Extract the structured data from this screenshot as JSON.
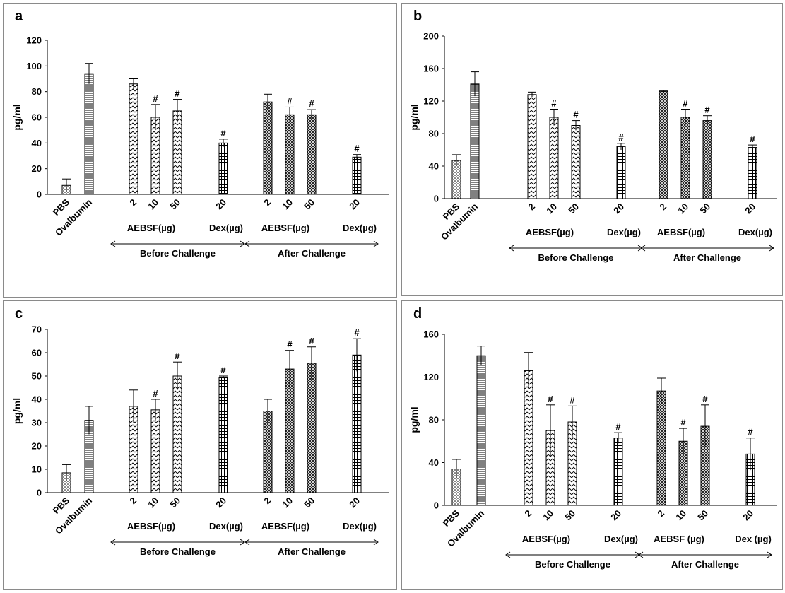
{
  "chart_data": [
    {
      "panel": "a",
      "type": "bar",
      "ylabel": "pg/ml",
      "ylim": [
        0,
        120
      ],
      "yticks": [
        0,
        20,
        40,
        60,
        80,
        100,
        120
      ],
      "categories": [
        "PBS",
        "Ovalbumin",
        "2",
        "10",
        "50",
        "20",
        "2",
        "10",
        "50",
        "20"
      ],
      "values": [
        7,
        94,
        86,
        60,
        65,
        40,
        72,
        62,
        62,
        29
      ],
      "errors": [
        5,
        8,
        4,
        10,
        9,
        3,
        6,
        6,
        4,
        2
      ],
      "significant": [
        false,
        false,
        false,
        true,
        true,
        true,
        false,
        true,
        true,
        true
      ],
      "sublabels": [
        "AEBSF(µg)",
        "Dex(µg)",
        "AEBSF(µg)",
        "Dex(µg)"
      ],
      "groups": [
        "Before Challenge",
        "After Challenge"
      ]
    },
    {
      "panel": "b",
      "type": "bar",
      "ylabel": "pg/ml",
      "ylim": [
        0,
        200
      ],
      "yticks": [
        0,
        40,
        80,
        120,
        160,
        200
      ],
      "categories": [
        "PBS",
        "Ovalbumin",
        "2",
        "10",
        "50",
        "20",
        "2",
        "10",
        "50",
        "20"
      ],
      "values": [
        47,
        141,
        128,
        100,
        90,
        64,
        132,
        100,
        96,
        63
      ],
      "errors": [
        7,
        15,
        3,
        10,
        6,
        4,
        1,
        10,
        6,
        3
      ],
      "significant": [
        false,
        false,
        false,
        true,
        true,
        true,
        false,
        true,
        true,
        true
      ],
      "sublabels": [
        "AEBSF(µg)",
        "Dex(µg)",
        "AEBSF(µg)",
        "Dex(µg)"
      ],
      "groups": [
        "Before Challenge",
        "After Challenge"
      ]
    },
    {
      "panel": "c",
      "type": "bar",
      "ylabel": "pg/ml",
      "ylim": [
        0,
        70
      ],
      "yticks": [
        0,
        10,
        20,
        30,
        40,
        50,
        60,
        70
      ],
      "categories": [
        "PBS",
        "Ovalbumin",
        "2",
        "10",
        "50",
        "20",
        "2",
        "10",
        "50",
        "20"
      ],
      "values": [
        8.5,
        31,
        37,
        35.5,
        50,
        49.5,
        35,
        53,
        55.5,
        59
      ],
      "errors": [
        3.5,
        6,
        7,
        4.5,
        6,
        0.5,
        5,
        8,
        7,
        7
      ],
      "significant": [
        false,
        false,
        false,
        true,
        true,
        true,
        false,
        true,
        true,
        true
      ],
      "sublabels": [
        "AEBSF(µg)",
        "Dex(µg)",
        "AEBSF(µg)",
        "Dex(µg)"
      ],
      "groups": [
        "Before Challenge",
        "After Challenge"
      ]
    },
    {
      "panel": "d",
      "type": "bar",
      "ylabel": "pg/ml",
      "ylim": [
        0,
        160
      ],
      "yticks": [
        0,
        40,
        80,
        120,
        160
      ],
      "categories": [
        "PBS",
        "Ovalbumin",
        "2",
        "10",
        "50",
        "20",
        "2",
        "10",
        "50",
        "20"
      ],
      "values": [
        34,
        140,
        126,
        70,
        78,
        63,
        107,
        60,
        74,
        48
      ],
      "errors": [
        9,
        9,
        17,
        24,
        15,
        5,
        12,
        12,
        20,
        15
      ],
      "significant": [
        false,
        false,
        false,
        true,
        true,
        true,
        false,
        true,
        true,
        true
      ],
      "sublabels": [
        "AEBSF(µg)",
        "Dex(µg)",
        "AEBSF (µg)",
        "Dex (µg)"
      ],
      "groups": [
        "Before Challenge",
        "After Challenge"
      ]
    }
  ],
  "significance_marker": "#",
  "patterns": [
    "dots",
    "hlines",
    "zigzag",
    "zigzag",
    "zigzag",
    "grid",
    "crosshatch",
    "crosshatch",
    "crosshatch",
    "grid"
  ]
}
